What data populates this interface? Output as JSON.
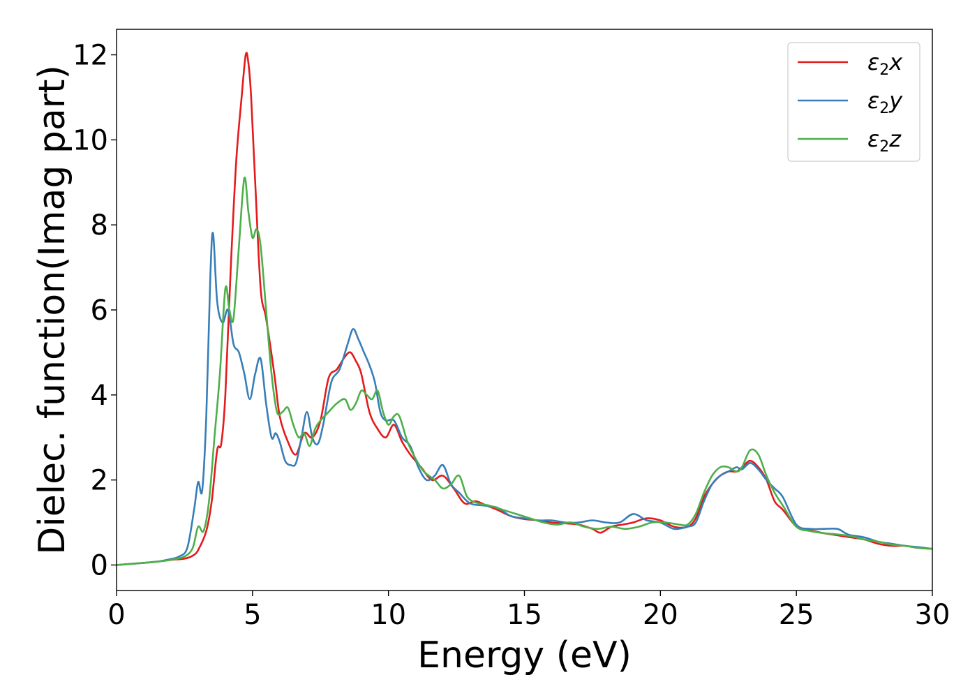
{
  "chart_data": {
    "type": "line",
    "xlabel": "Energy (eV)",
    "ylabel": "Dielec. function(Imag part)",
    "xlim": [
      0,
      30
    ],
    "ylim": [
      -0.6,
      12.6
    ],
    "xticks": [
      0,
      5,
      10,
      15,
      20,
      25,
      30
    ],
    "yticks": [
      0,
      2,
      4,
      6,
      8,
      10,
      12
    ],
    "grid": false,
    "legend_position": "top-right",
    "series": [
      {
        "name": "ε2x",
        "legend": {
          "base": "ε",
          "sub": "2",
          "suffix": "x"
        },
        "color": "#e41a1c",
        "x": [
          0,
          1,
          1.5,
          2,
          2.5,
          2.8,
          3.0,
          3.3,
          3.5,
          3.7,
          3.85,
          4.0,
          4.2,
          4.4,
          4.6,
          4.75,
          4.85,
          4.95,
          5.1,
          5.3,
          5.5,
          5.8,
          6.0,
          6.3,
          6.6,
          6.9,
          7.2,
          7.5,
          7.8,
          8.1,
          8.4,
          8.6,
          8.8,
          9.0,
          9.3,
          9.6,
          9.9,
          10.2,
          10.5,
          10.8,
          11.2,
          11.6,
          12.0,
          12.4,
          12.8,
          13.2,
          13.6,
          14.0,
          14.5,
          15.0,
          15.5,
          16.0,
          16.5,
          17.0,
          17.5,
          17.8,
          18.2,
          18.6,
          19.0,
          19.5,
          20.0,
          20.5,
          21.0,
          21.3,
          21.6,
          21.9,
          22.2,
          22.5,
          22.8,
          23.0,
          23.3,
          23.6,
          23.9,
          24.2,
          24.5,
          25.0,
          25.3,
          25.6,
          26.0,
          26.5,
          27.0,
          27.5,
          28.0,
          28.5,
          29.0,
          29.5,
          30.0
        ],
        "y": [
          0,
          0.05,
          0.08,
          0.12,
          0.15,
          0.22,
          0.35,
          0.8,
          1.5,
          2.7,
          2.85,
          4.0,
          7.0,
          9.5,
          11.0,
          12.0,
          11.8,
          11.0,
          9.0,
          6.5,
          5.8,
          4.5,
          3.5,
          2.9,
          2.6,
          3.1,
          3.0,
          3.4,
          4.4,
          4.6,
          4.9,
          5.0,
          4.8,
          4.5,
          3.6,
          3.2,
          3.0,
          3.3,
          2.9,
          2.6,
          2.3,
          2.0,
          2.1,
          1.8,
          1.45,
          1.5,
          1.4,
          1.3,
          1.15,
          1.08,
          1.05,
          1.0,
          0.98,
          0.95,
          0.85,
          0.76,
          0.9,
          0.95,
          1.0,
          1.1,
          1.05,
          0.9,
          0.9,
          1.1,
          1.6,
          1.9,
          2.1,
          2.2,
          2.2,
          2.3,
          2.45,
          2.3,
          2.0,
          1.5,
          1.3,
          0.9,
          0.85,
          0.8,
          0.75,
          0.7,
          0.65,
          0.6,
          0.5,
          0.45,
          0.45,
          0.4,
          0.38
        ]
      },
      {
        "name": "ε2y",
        "legend": {
          "base": "ε",
          "sub": "2",
          "suffix": "y"
        },
        "color": "#377eb8",
        "x": [
          0,
          1,
          1.5,
          2,
          2.3,
          2.6,
          2.85,
          3.0,
          3.15,
          3.3,
          3.45,
          3.55,
          3.7,
          3.9,
          4.1,
          4.3,
          4.5,
          4.7,
          4.9,
          5.1,
          5.3,
          5.5,
          5.7,
          5.85,
          6.0,
          6.2,
          6.4,
          6.6,
          6.8,
          7.0,
          7.2,
          7.4,
          7.6,
          7.9,
          8.2,
          8.5,
          8.7,
          8.9,
          9.1,
          9.3,
          9.5,
          9.7,
          9.9,
          10.2,
          10.5,
          10.8,
          11.1,
          11.4,
          11.7,
          12.0,
          12.3,
          12.6,
          13.0,
          13.5,
          14.0,
          14.5,
          15.0,
          15.5,
          16.0,
          16.5,
          17.0,
          17.5,
          18.0,
          18.5,
          19.0,
          19.5,
          20.0,
          20.5,
          21.0,
          21.3,
          21.6,
          21.9,
          22.2,
          22.5,
          22.8,
          23.0,
          23.3,
          23.6,
          23.9,
          24.2,
          24.5,
          25.0,
          25.5,
          26.0,
          26.5,
          26.8,
          27.0,
          27.5,
          28.0,
          28.5,
          29.0,
          29.5,
          30.0
        ],
        "y": [
          0,
          0.05,
          0.08,
          0.14,
          0.2,
          0.4,
          1.3,
          1.95,
          1.75,
          3.5,
          6.8,
          7.8,
          6.2,
          5.7,
          6.0,
          5.2,
          5.0,
          4.5,
          3.9,
          4.5,
          4.85,
          3.8,
          3.0,
          3.1,
          2.9,
          2.45,
          2.35,
          2.4,
          3.0,
          3.6,
          3.0,
          2.85,
          3.3,
          4.3,
          4.6,
          5.2,
          5.55,
          5.3,
          5.0,
          4.7,
          4.3,
          3.6,
          3.4,
          3.4,
          3.0,
          2.8,
          2.3,
          2.0,
          2.1,
          2.35,
          1.9,
          1.7,
          1.45,
          1.4,
          1.35,
          1.15,
          1.1,
          1.05,
          1.05,
          1.0,
          1.0,
          1.05,
          1.0,
          1.0,
          1.2,
          1.05,
          1.0,
          0.85,
          0.9,
          1.0,
          1.5,
          1.9,
          2.1,
          2.2,
          2.3,
          2.25,
          2.4,
          2.25,
          2.0,
          1.8,
          1.6,
          0.95,
          0.85,
          0.85,
          0.85,
          0.75,
          0.7,
          0.65,
          0.55,
          0.5,
          0.45,
          0.42,
          0.38
        ]
      },
      {
        "name": "ε2z",
        "legend": {
          "base": "ε",
          "sub": "2",
          "suffix": "z"
        },
        "color": "#4daf4a",
        "x": [
          0,
          1,
          1.5,
          2,
          2.5,
          2.8,
          3.0,
          3.2,
          3.4,
          3.6,
          3.8,
          4.0,
          4.15,
          4.3,
          4.5,
          4.7,
          4.85,
          5.0,
          5.15,
          5.3,
          5.5,
          5.7,
          5.9,
          6.1,
          6.3,
          6.5,
          6.7,
          6.9,
          7.1,
          7.3,
          7.5,
          7.8,
          8.1,
          8.4,
          8.6,
          8.8,
          9.0,
          9.2,
          9.4,
          9.6,
          9.8,
          10.0,
          10.2,
          10.4,
          10.7,
          11.0,
          11.3,
          11.7,
          12.0,
          12.3,
          12.6,
          12.9,
          13.3,
          13.7,
          14.2,
          14.7,
          15.2,
          15.7,
          16.2,
          16.7,
          17.2,
          17.7,
          18.2,
          18.7,
          19.2,
          19.7,
          20.2,
          20.7,
          21.0,
          21.3,
          21.6,
          21.9,
          22.2,
          22.5,
          22.8,
          23.0,
          23.3,
          23.6,
          23.9,
          24.2,
          24.5,
          25.0,
          25.5,
          26.0,
          26.5,
          27.0,
          27.5,
          28.0,
          28.5,
          29.0,
          29.5,
          30.0
        ],
        "y": [
          0,
          0.05,
          0.08,
          0.12,
          0.2,
          0.4,
          0.9,
          0.8,
          1.5,
          3.0,
          4.5,
          6.5,
          6.0,
          5.8,
          7.5,
          9.1,
          8.3,
          7.7,
          7.9,
          7.5,
          6.0,
          4.5,
          3.6,
          3.6,
          3.7,
          3.3,
          3.0,
          3.1,
          2.8,
          3.2,
          3.4,
          3.6,
          3.8,
          3.9,
          3.65,
          3.8,
          4.1,
          4.0,
          3.9,
          4.1,
          3.6,
          3.3,
          3.5,
          3.5,
          2.9,
          2.5,
          2.2,
          2.0,
          1.8,
          1.9,
          2.1,
          1.6,
          1.45,
          1.4,
          1.3,
          1.2,
          1.1,
          1.0,
          0.95,
          1.0,
          0.9,
          0.85,
          0.9,
          0.85,
          0.9,
          1.0,
          1.0,
          0.95,
          0.95,
          1.2,
          1.7,
          2.1,
          2.3,
          2.3,
          2.2,
          2.3,
          2.7,
          2.6,
          2.1,
          1.7,
          1.4,
          0.9,
          0.8,
          0.75,
          0.72,
          0.68,
          0.6,
          0.55,
          0.48,
          0.45,
          0.4,
          0.38
        ]
      }
    ]
  }
}
